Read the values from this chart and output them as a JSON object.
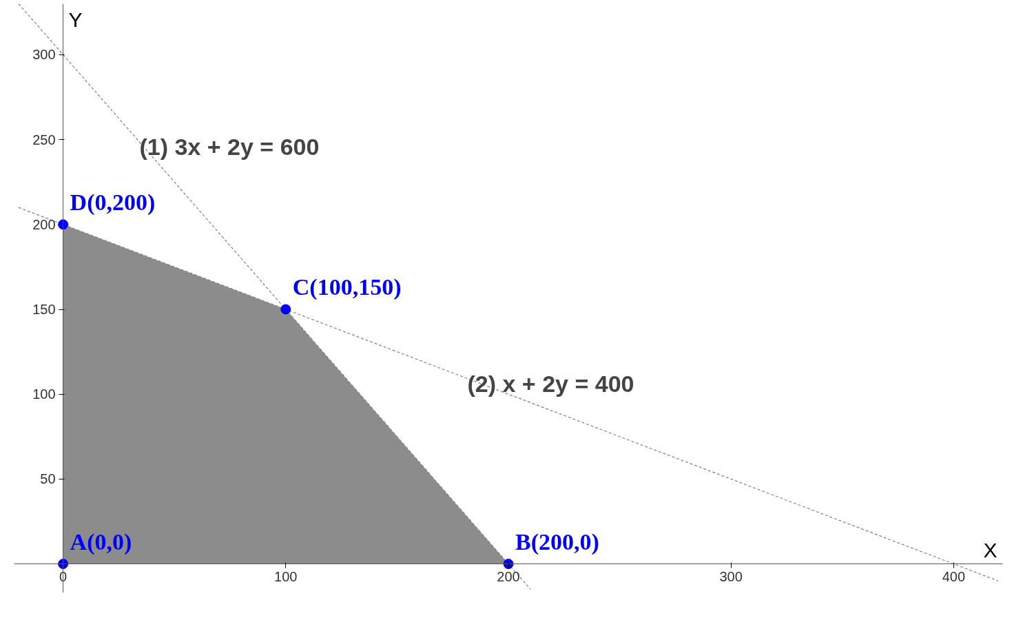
{
  "chart_data": {
    "type": "area",
    "xlabel": "X",
    "ylabel": "Y",
    "xlim": [
      -22,
      422
    ],
    "ylim": [
      -17,
      330
    ],
    "xticks": [
      0,
      100,
      200,
      300,
      400
    ],
    "yticks": [
      50,
      100,
      150,
      200,
      250,
      300
    ],
    "grid": false,
    "series": [
      {
        "color": "#8c8c8c",
        "x": [
          0,
          100,
          200
        ],
        "values": [
          200,
          150,
          0
        ]
      },
      {
        "type": "line",
        "color": "#808080",
        "line_style": "dashed",
        "x": [
          -20,
          210
        ],
        "values": [
          330,
          -15
        ]
      },
      {
        "type": "line",
        "color": "#808080",
        "line_style": "dashed",
        "x": [
          -20,
          420
        ],
        "values": [
          210,
          -10
        ]
      },
      {
        "type": "scatter",
        "color": "#0000ff",
        "marker": "circle",
        "x": [
          0,
          200,
          100,
          0
        ],
        "values": [
          0,
          0,
          150,
          200
        ],
        "value_labels": [
          "A(0,0)",
          "B(200,0)",
          "C(100,150)",
          "D(0,200)"
        ]
      }
    ],
    "annotations": [
      "(1)  3x + 2y = 600",
      "(2) x + 2y = 400"
    ]
  }
}
